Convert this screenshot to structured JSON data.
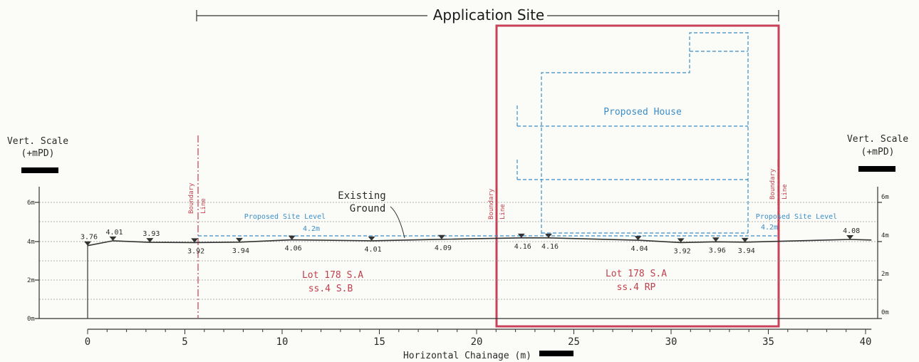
{
  "title": "Application Site",
  "vert_scale": {
    "label_line1": "Vert. Scale",
    "label_line2": "(+mPD)"
  },
  "y_ticks": [
    "0m",
    "2m",
    "4m",
    "6m"
  ],
  "x_axis": {
    "label": "Horizontal Chainage (m)",
    "ticks": [
      "0",
      "5",
      "10",
      "15",
      "20",
      "25",
      "30",
      "35",
      "40"
    ]
  },
  "annotations": {
    "existing_ground_1": "Existing",
    "existing_ground_2": "Ground",
    "proposed_house": "Proposed House",
    "proposed_site_level": "Proposed Site Level",
    "proposed_site_level_value": "4.2m",
    "boundary_line_1": "Boundary",
    "boundary_line_2": "Line",
    "lot_left_1": "Lot 178 S.A",
    "lot_left_2": "ss.4 S.B",
    "lot_right_1": "Lot 178 S.A",
    "lot_right_2": "ss.4 RP"
  },
  "chart_data": {
    "type": "line",
    "title": "Application Site",
    "xlabel": "Horizontal Chainage (m)",
    "ylabel": "Vert. Scale (+mPD)",
    "xlim": [
      0,
      40
    ],
    "ylim": [
      0,
      6
    ],
    "series": [
      {
        "name": "Existing Ground",
        "x": [
          0,
          1.3,
          3.2,
          5.5,
          7.8,
          10.5,
          14.6,
          18.2,
          22.3,
          23.7,
          28.3,
          30.5,
          32.3,
          33.8,
          39.2
        ],
        "y": [
          3.76,
          4.01,
          3.93,
          3.92,
          3.94,
          4.06,
          4.01,
          4.09,
          4.16,
          4.16,
          4.04,
          3.92,
          3.96,
          3.94,
          4.08
        ],
        "labels": [
          "3.76",
          "4.01",
          "3.93",
          "3.92",
          "3.94",
          "4.06",
          "4.01",
          "4.09",
          "4.16",
          "4.16",
          "4.04",
          "3.92",
          "3.96",
          "3.94",
          "4.08"
        ]
      }
    ]
  },
  "colors": {
    "site_box": "#c8435a",
    "blue_dashed": "#3a8ec8",
    "red_text": "#c0404c",
    "line": "#333333"
  }
}
